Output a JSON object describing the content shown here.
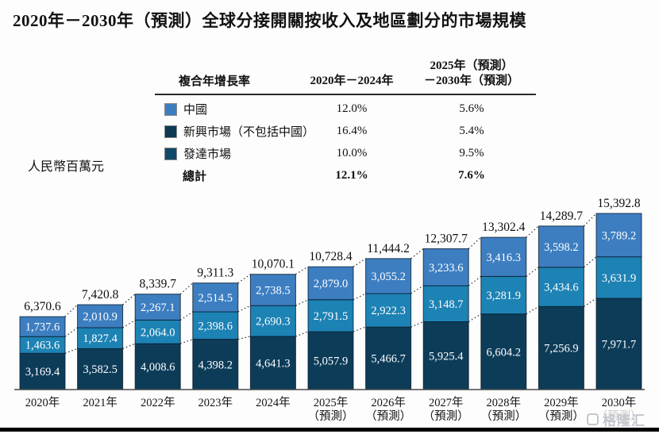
{
  "page": {
    "title": "2020年－2030年（預測）全球分接開關按收入及地區劃分的市場規模"
  },
  "cagr_table": {
    "corner_label": "複合年增長率",
    "col_2020_2024": "2020年－2024年",
    "col_2025_2030_line1": "2025年（預測）",
    "col_2025_2030_line2": "－2030年（預測）",
    "rows": [
      {
        "label": "中國",
        "swatch": "#3d7ec1",
        "cagr_2020_2024": "12.0%",
        "cagr_2025_2030": "5.6%"
      },
      {
        "label": "新興市場（不包括中國）",
        "swatch": "#0d3a55",
        "cagr_2020_2024": "16.4%",
        "cagr_2025_2030": "5.4%"
      },
      {
        "label": "發達市場",
        "swatch": "#11496b",
        "cagr_2020_2024": "10.0%",
        "cagr_2025_2030": "9.5%"
      }
    ],
    "total_row": {
      "label": "總計",
      "cagr_2020_2024": "12.1%",
      "cagr_2025_2030": "7.6%"
    }
  },
  "axis_unit_label": "人民幣百萬元",
  "watermark_label": "格隆汇",
  "chart_data": {
    "type": "bar",
    "stacked": true,
    "stack_order": "bottom_to_top",
    "title": "2020年－2030年（預測）全球分接開關按收入及地區劃分的市場規模",
    "ylabel": "人民幣百萬元",
    "y_axis_visible": false,
    "ylim": [
      0,
      15392.8
    ],
    "legend_position": "table-top",
    "grid": false,
    "categories": [
      "2020年",
      "2021年",
      "2022年",
      "2023年",
      "2024年",
      "2025年",
      "2026年",
      "2027年",
      "2028年",
      "2029年",
      "2030年"
    ],
    "forecast_from_index": 5,
    "forecast_note": "（預測）",
    "series": [
      {
        "name": "發達市場",
        "color": "#0d3c59",
        "values": [
          3169.4,
          3582.5,
          4008.6,
          4398.2,
          4641.3,
          5057.9,
          5466.7,
          5925.4,
          6604.2,
          7256.9,
          7971.7
        ]
      },
      {
        "name": "新興市場（不包括中國）",
        "color": "#1d82b4",
        "values": [
          1463.6,
          1827.4,
          2064.0,
          2398.6,
          2690.3,
          2791.5,
          2922.3,
          3148.7,
          3281.9,
          3434.6,
          3631.9
        ]
      },
      {
        "name": "中國",
        "color": "#3d7ec1",
        "values": [
          1737.6,
          2010.9,
          2267.1,
          2514.5,
          2738.5,
          2879.0,
          3055.2,
          3233.6,
          3416.3,
          3598.2,
          3789.2
        ]
      }
    ],
    "totals": [
      6370.6,
      7420.8,
      8339.7,
      9311.3,
      10070.1,
      10728.4,
      11444.2,
      12307.7,
      13302.4,
      14289.7,
      15392.8
    ]
  }
}
